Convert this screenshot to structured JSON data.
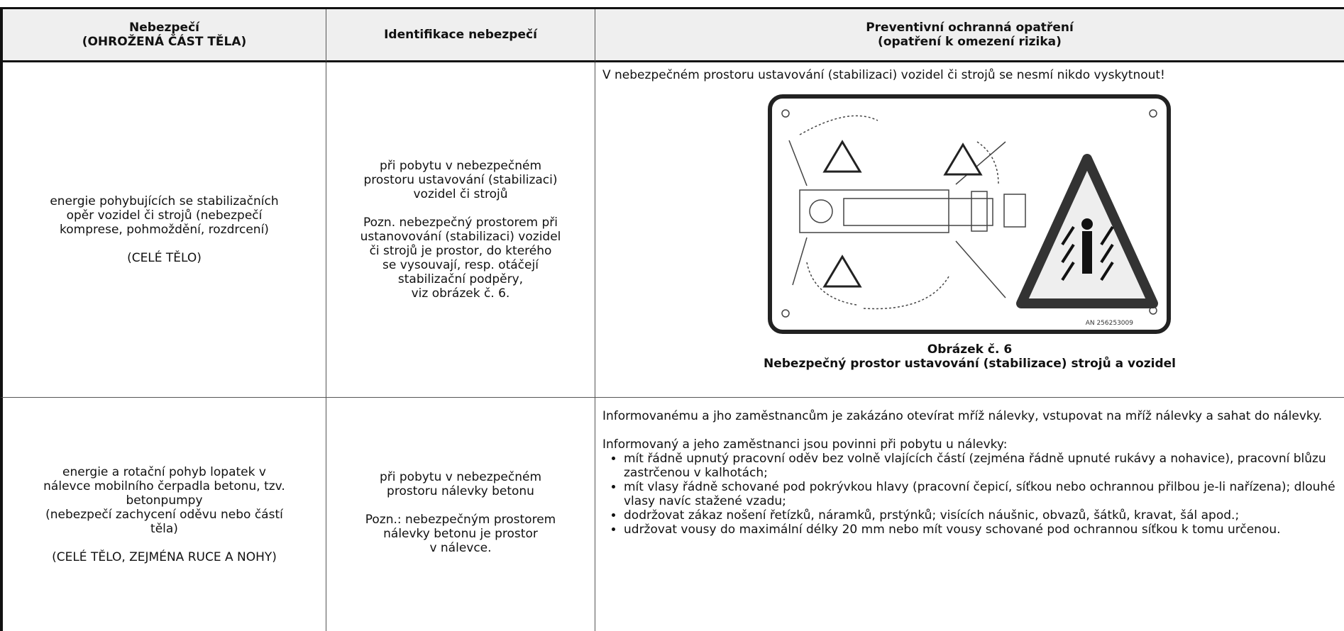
{
  "header": {
    "columns": [
      [
        "Nebezpečí",
        "(OHROŽENÁ ČÁST TĚLA)"
      ],
      [
        "Identifikace nebezpečí"
      ],
      [
        "Preventivní ochranná opatření",
        "(opatření k omezení rizika)"
      ]
    ]
  },
  "rows": [
    {
      "hazard": [
        [
          "energie pohybujících se stabilizačních",
          "opěr vozidel či strojů (nebezpečí",
          "komprese, pohmoždění, rozdrcení)"
        ],
        [
          "(CELÉ TĚLO)"
        ]
      ],
      "identification": [
        [
          "při pobytu v nebezpečném",
          "prostoru ustavování (stabilizaci)",
          "vozidel či strojů"
        ],
        [
          "Pozn. nebezpečný prostorem při",
          "ustanovování (stabilizaci) vozidel",
          "či strojů je prostor, do kterého",
          "se vysouvají, resp. otáčejí",
          "stabilizační podpěry,",
          "viz obrázek č. 6."
        ]
      ],
      "measures": {
        "intro": "V nebezpečném prostoru ustavování (stabilizaci) vozidel či strojů se nesmí nikdo vyskytnout!",
        "figure_code": "AN 256253009",
        "caption": [
          "Obrázek č. 6",
          "Nebezpečný prostor ustavování (stabilizace) strojů a vozidel"
        ]
      }
    },
    {
      "hazard": [
        [
          "energie a rotační pohyb lopatek v",
          "nálevce mobilního čerpadla betonu, tzv.",
          "betonpumpy",
          "(nebezpečí zachycení oděvu nebo částí",
          "těla)"
        ],
        [
          "(CELÉ TĚLO, ZEJMÉNA RUCE A NOHY)"
        ]
      ],
      "identification": [
        [
          "při pobytu v nebezpečném",
          "prostoru nálevky betonu"
        ],
        [
          "Pozn.: nebezpečným prostorem",
          "nálevky betonu je prostor",
          "v nálevce."
        ]
      ],
      "measures": {
        "intro": "Informovanému a jho zaměstnancům je zakázáno otevírat mříž nálevky, vstupovat na mříž nálevky a sahat do nálevky.",
        "lead": "Informovaný a jeho zaměstnanci jsou povinni při pobytu u nálevky:",
        "items": [
          "mít řádně upnutý pracovní oděv bez volně vlajících částí (zejména řádně upnuté rukávy a nohavice), pracovní blůzu zastrčenou v kalhotách;",
          "mít vlasy řádně schované pod pokrývkou hlavy (pracovní čepicí, síťkou nebo ochrannou přilbou je-li nařízena); dlouhé vlasy navíc stažené vzadu;",
          "dodržovat zákaz nošení řetízků, náramků, prstýnků; visících náušnic, obvazů, šátků, kravat, šál apod.;",
          "udržovat vousy do maximální délky 20 mm nebo mít vousy schované pod ochrannou síťkou k tomu určenou."
        ]
      }
    }
  ]
}
